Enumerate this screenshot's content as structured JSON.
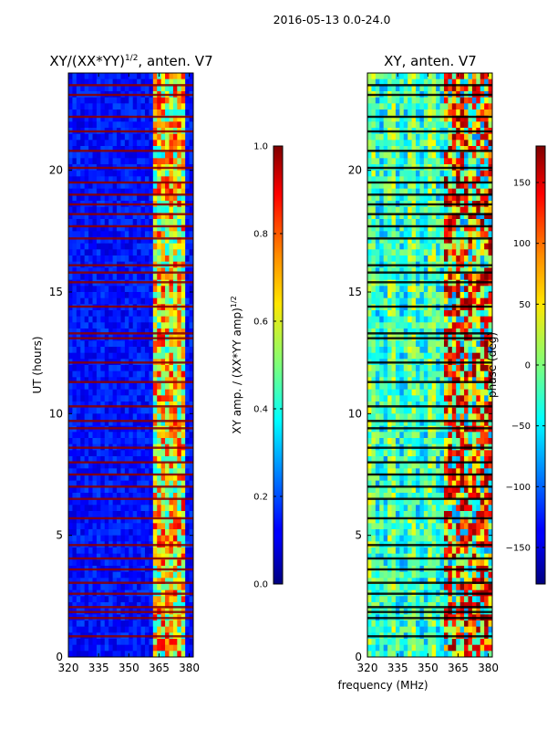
{
  "figure": {
    "suptitle": "2016-05-13 0.0-24.0",
    "xlabel": "frequency (MHz)"
  },
  "chart_data": [
    {
      "type": "heatmap",
      "title": "XY/(XX*YY)",
      "title_exponent": "1/2",
      "title_suffix": ", anten. V7",
      "xlabel": "",
      "ylabel": "UT (hours)",
      "xlim": [
        320,
        382
      ],
      "ylim": [
        0,
        24
      ],
      "xticks": [
        320,
        335,
        350,
        365,
        380
      ],
      "xtick_labels": [
        "320",
        "335",
        "350",
        "365",
        "380"
      ],
      "yticks": [
        0,
        5,
        10,
        15,
        20
      ],
      "ytick_labels": [
        "0",
        "5",
        "10",
        "15",
        "20"
      ],
      "colorbar": {
        "label": "XY amp. / (XX*YY amp)",
        "label_exponent": "1/2",
        "range": [
          0.0,
          1.0
        ],
        "ticks": [
          0.0,
          0.2,
          0.4,
          0.6,
          0.8,
          1.0
        ],
        "tick_labels": [
          "0.0",
          "0.2",
          "0.4",
          "0.6",
          "0.8",
          "1.0"
        ],
        "colormap": "jet"
      },
      "bad_rows_ut": [
        0.85,
        1.6,
        1.85,
        2.05,
        2.6,
        3.05,
        3.6,
        4.05,
        4.6,
        5.7,
        6.5,
        7.0,
        7.5,
        8.0,
        8.6,
        9.4,
        9.7,
        10.3,
        11.3,
        12.1,
        13.1,
        13.3,
        14.4,
        15.4,
        15.8,
        16.1,
        17.2,
        17.7,
        18.2,
        18.6,
        19.0,
        19.5,
        20.1,
        20.8,
        21.6,
        22.2,
        23.1,
        23.5
      ]
    },
    {
      "type": "heatmap",
      "title": "XY, anten. V7",
      "xlabel": "",
      "ylabel": "",
      "xlim": [
        320,
        382
      ],
      "ylim": [
        0,
        24
      ],
      "xticks": [
        320,
        335,
        350,
        365,
        380
      ],
      "xtick_labels": [
        "320",
        "335",
        "350",
        "365",
        "380"
      ],
      "yticks": [
        0,
        5,
        10,
        15,
        20
      ],
      "ytick_labels": [
        "0",
        "5",
        "10",
        "15",
        "20"
      ],
      "colorbar": {
        "label": "phase (deg)",
        "range": [
          -180,
          180
        ],
        "ticks": [
          -150,
          -100,
          -50,
          0,
          50,
          100,
          150
        ],
        "tick_labels": [
          "−150",
          "−100",
          "−50",
          "0",
          "50",
          "100",
          "150"
        ],
        "colormap": "jet"
      },
      "bad_rows_ut": [
        0.85,
        1.6,
        1.85,
        2.05,
        2.6,
        3.05,
        3.6,
        4.05,
        4.6,
        5.7,
        6.5,
        7.0,
        7.5,
        8.0,
        8.6,
        9.4,
        9.7,
        10.3,
        11.3,
        12.1,
        13.1,
        13.3,
        14.4,
        15.4,
        15.8,
        16.1,
        17.2,
        17.7,
        18.2,
        18.6,
        19.0,
        19.5,
        20.1,
        20.8,
        21.6,
        22.2,
        23.1,
        23.5
      ]
    }
  ]
}
